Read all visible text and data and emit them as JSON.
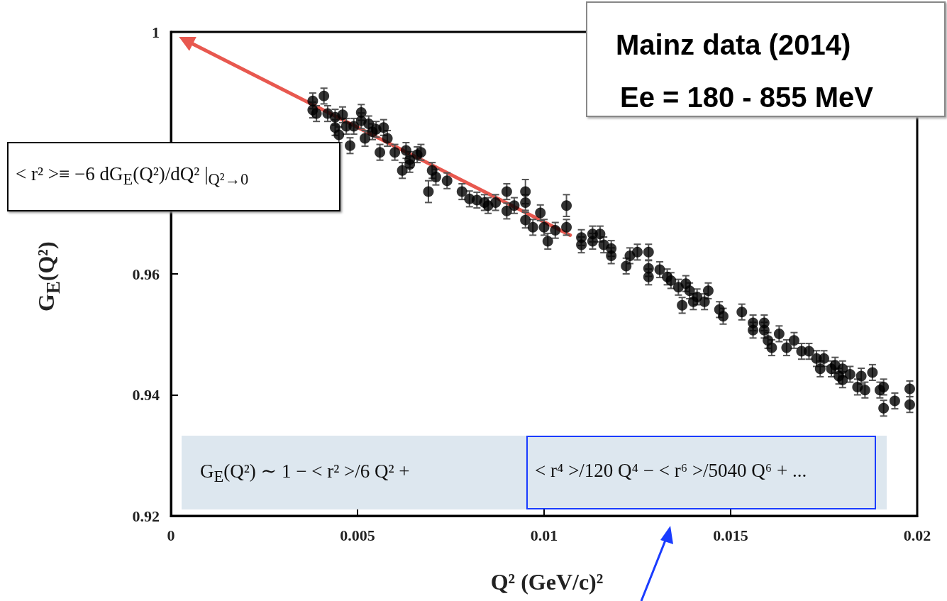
{
  "chart_data": {
    "type": "scatter",
    "xlabel": "Q² (GeV/c)²",
    "ylabel": "G$_{E}$(Q²)",
    "xlim": [
      0,
      0.02
    ],
    "xticks": [
      0,
      0.005,
      0.01,
      0.015,
      0.02
    ],
    "ylim": [
      0.92,
      1
    ],
    "yticks": [
      0.92,
      0.94,
      0.96,
      {
        "value": 0.98,
        "label": null
      },
      1
    ],
    "grid": false,
    "marker": "circle",
    "annotations": [
      "Mainz data (2014)",
      "Ee = 180 - 855 MeV",
      "< r² >≡ −6 dG$_{E}$(Q²)/dQ² |$_{Q²→0}$",
      "G$_{E}$(Q²) ∼ 1 − < r² >/6 Q² +",
      "< r⁴ >/120 Q⁴ − < r⁶ >/5040 Q⁶ + ..."
    ],
    "series": [
      {
        "type": "scatter",
        "color": "#000000",
        "x": [
          0.0038,
          0.0038,
          0.0041,
          0.0039,
          0.0042,
          0.0044,
          0.0046,
          0.0047,
          0.0044,
          0.0045,
          0.0048,
          0.0049,
          0.0051,
          0.0051,
          0.0053,
          0.0054,
          0.0052,
          0.0055,
          0.0057,
          0.0058,
          0.0056,
          0.006,
          0.0063,
          0.0064,
          0.0066,
          0.0067,
          0.0062,
          0.0064,
          0.0069,
          0.007,
          0.0071,
          0.0074,
          0.0078,
          0.008,
          0.0082,
          0.0084,
          0.0085,
          0.0087,
          0.009,
          0.009,
          0.0092,
          0.0095,
          0.0095,
          0.0095,
          0.0097,
          0.0099,
          0.01,
          0.0101,
          0.0103,
          0.0106,
          0.0106,
          0.011,
          0.011,
          0.0113,
          0.0113,
          0.0115,
          0.0116,
          0.0118,
          0.0118,
          0.0122,
          0.0123,
          0.0125,
          0.0128,
          0.0128,
          0.0128,
          0.0131,
          0.0133,
          0.0134,
          0.0136,
          0.0137,
          0.0138,
          0.0139,
          0.014,
          0.0141,
          0.0143,
          0.0144,
          0.0147,
          0.0148,
          0.0153,
          0.0156,
          0.0156,
          0.0159,
          0.0159,
          0.016,
          0.0161,
          0.0163,
          0.0165,
          0.0167,
          0.0169,
          0.0171,
          0.0173,
          0.0174,
          0.0175,
          0.0177,
          0.0178,
          0.0179,
          0.018,
          0.018,
          0.0182,
          0.0184,
          0.0185,
          0.0186,
          0.0188,
          0.019,
          0.0191,
          0.0191,
          0.0194,
          0.0198,
          0.0198
        ],
        "values": [
          0.9886,
          0.9871,
          0.9894,
          0.9865,
          0.9865,
          0.9859,
          0.9863,
          0.9844,
          0.9842,
          0.983,
          0.9812,
          0.9844,
          0.9853,
          0.9867,
          0.9848,
          0.9835,
          0.9824,
          0.9839,
          0.9842,
          0.9824,
          0.9801,
          0.9801,
          0.9804,
          0.9789,
          0.9797,
          0.9801,
          0.9771,
          0.9781,
          0.9736,
          0.9771,
          0.976,
          0.9754,
          0.9736,
          0.9724,
          0.9722,
          0.9718,
          0.9713,
          0.9718,
          0.9736,
          0.9704,
          0.9713,
          0.9736,
          0.9718,
          0.9689,
          0.9677,
          0.9701,
          0.9677,
          0.9654,
          0.9672,
          0.9677,
          0.9713,
          0.966,
          0.9648,
          0.9654,
          0.9666,
          0.9666,
          0.9648,
          0.9642,
          0.963,
          0.9613,
          0.963,
          0.9636,
          0.9609,
          0.9636,
          0.9595,
          0.9607,
          0.9595,
          0.9589,
          0.9578,
          0.9548,
          0.9584,
          0.9572,
          0.9554,
          0.9562,
          0.9554,
          0.9572,
          0.9541,
          0.953,
          0.9537,
          0.9519,
          0.9507,
          0.9519,
          0.9507,
          0.949,
          0.9478,
          0.9501,
          0.9478,
          0.949,
          0.9472,
          0.9472,
          0.946,
          0.9443,
          0.946,
          0.9443,
          0.9449,
          0.9431,
          0.9425,
          0.9443,
          0.9434,
          0.9413,
          0.9431,
          0.9408,
          0.9437,
          0.9408,
          0.9378,
          0.9413,
          0.939,
          0.941,
          0.9384
        ],
        "errors": [
          0.0013,
          0.0013,
          0.0013,
          0.0013,
          0.0013,
          0.0013,
          0.0013,
          0.0013,
          0.0013,
          0.0013,
          0.0013,
          0.0013,
          0.0013,
          0.0013,
          0.0013,
          0.0013,
          0.0013,
          0.0013,
          0.0013,
          0.0013,
          0.0013,
          0.0013,
          0.0013,
          0.0013,
          0.0013,
          0.0013,
          0.0013,
          0.0013,
          0.0018,
          0.0013,
          0.0013,
          0.0013,
          0.0013,
          0.0013,
          0.0013,
          0.0013,
          0.0013,
          0.0013,
          0.0013,
          0.0013,
          0.0013,
          0.002,
          0.0013,
          0.0013,
          0.0013,
          0.0013,
          0.0013,
          0.0013,
          0.0013,
          0.0013,
          0.0018,
          0.0013,
          0.0013,
          0.0013,
          0.0013,
          0.0013,
          0.0013,
          0.0013,
          0.0013,
          0.0013,
          0.0013,
          0.0013,
          0.0013,
          0.0013,
          0.0013,
          0.0013,
          0.0013,
          0.0013,
          0.0013,
          0.0013,
          0.0013,
          0.0013,
          0.0013,
          0.0013,
          0.0013,
          0.0013,
          0.0013,
          0.0013,
          0.0013,
          0.0013,
          0.0013,
          0.0013,
          0.0013,
          0.0013,
          0.0013,
          0.0013,
          0.0013,
          0.0013,
          0.0013,
          0.0013,
          0.0013,
          0.0013,
          0.0013,
          0.0013,
          0.0013,
          0.0013,
          0.0013,
          0.0013,
          0.0013,
          0.0013,
          0.0013,
          0.0013,
          0.0013,
          0.0013,
          0.0013,
          0.0013,
          0.0013,
          0.0013,
          0.0013
        ]
      },
      {
        "type": "line",
        "color": "#e8584f",
        "marker": "triangle",
        "x": [
          0.0107,
          0.0004
        ],
        "values": [
          0.9664,
          0.9986
        ]
      }
    ]
  }
}
